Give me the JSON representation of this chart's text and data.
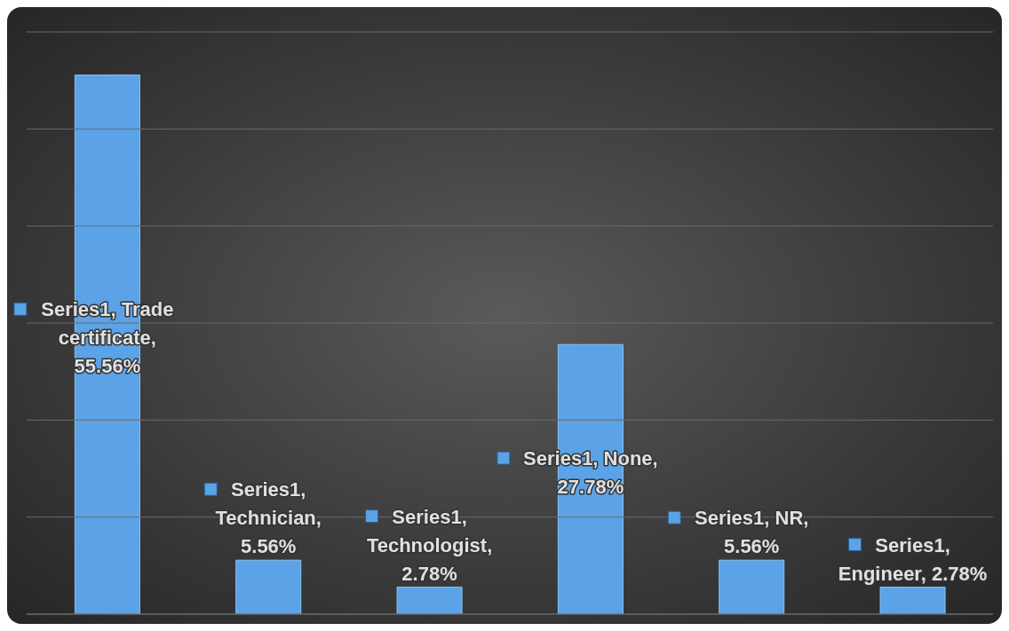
{
  "chart_data": {
    "type": "bar",
    "categories": [
      null,
      null,
      null,
      null,
      null,
      null
    ],
    "series": [
      {
        "color": "#5ba3e6",
        "values": [
          55.56,
          5.56,
          2.78,
          27.78,
          5.56,
          2.78
        ],
        "value_labels": [
          "Series1, Trade certificate, 55.56%",
          "Series1, Technician, 5.56%",
          "Series1, Technologist, 2.78%",
          "Series1, None, 27.78%",
          "Series1, NR, 5.56%",
          "Series1, Engineer, 2.78%"
        ]
      }
    ],
    "ylim": [
      0,
      60
    ],
    "yticks": [
      {
        "value": 0,
        "label": null
      },
      {
        "value": 10,
        "label": null
      },
      {
        "value": 20,
        "label": null
      },
      {
        "value": 30,
        "label": null
      },
      {
        "value": 40,
        "label": null
      },
      {
        "value": 50,
        "label": null
      },
      {
        "value": 60,
        "label": null
      }
    ],
    "grid": "y",
    "tick_labels": false,
    "legend": false
  }
}
